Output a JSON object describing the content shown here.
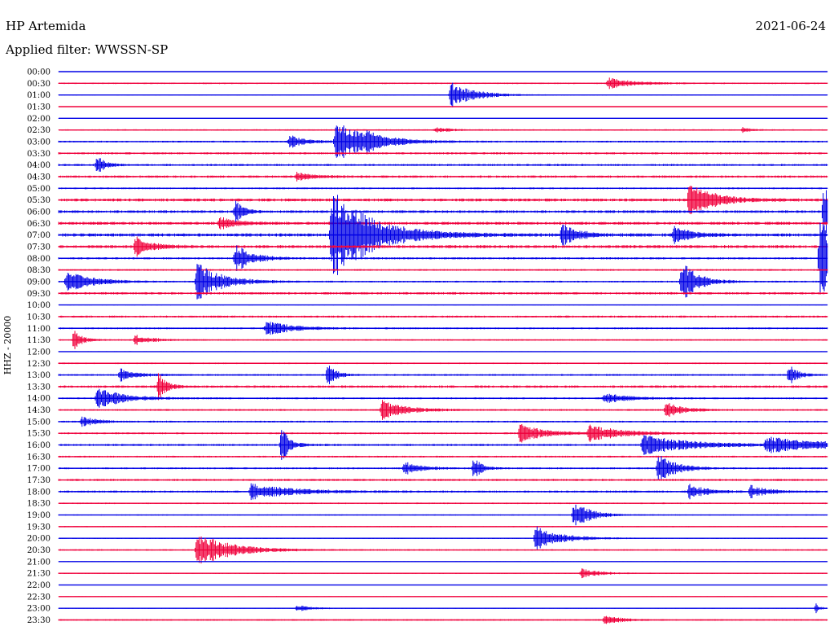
{
  "header": {
    "station": "HP Artemida",
    "date": "2021-06-24",
    "filter": "Applied filter: WWSSN-SP"
  },
  "chart_data": {
    "type": "line",
    "subtype": "helicorder",
    "ylabel": "HHZ - 20000",
    "row_labels": [
      "00:00",
      "00:30",
      "01:00",
      "01:30",
      "02:00",
      "02:30",
      "03:00",
      "03:30",
      "04:00",
      "04:30",
      "05:00",
      "05:30",
      "06:00",
      "06:30",
      "07:00",
      "07:30",
      "08:00",
      "08:30",
      "09:00",
      "09:30",
      "10:00",
      "10:30",
      "11:00",
      "11:30",
      "12:00",
      "12:30",
      "13:00",
      "13:30",
      "14:00",
      "14:30",
      "15:00",
      "15:30",
      "16:00",
      "16:30",
      "17:00",
      "17:30",
      "18:00",
      "18:30",
      "19:00",
      "19:30",
      "20:00",
      "20:30",
      "21:00",
      "21:30",
      "22:00",
      "22:30",
      "23:00",
      "23:30"
    ],
    "series_colors": [
      "#0000e6",
      "#f0003c"
    ],
    "color_pattern": "alternating rows: blue, red",
    "rows_per_hour": 2,
    "minutes_per_row": 30,
    "noise_level": [
      0.3,
      0.5,
      0.3,
      0.3,
      0.2,
      0.5,
      0.6,
      0.7,
      0.7,
      0.8,
      0.6,
      1.0,
      0.9,
      1.0,
      1.1,
      1.0,
      0.7,
      0.6,
      0.6,
      0.8,
      0.3,
      0.7,
      0.6,
      0.5,
      0.3,
      0.5,
      0.6,
      0.8,
      0.6,
      0.6,
      0.6,
      0.6,
      0.7,
      0.6,
      0.6,
      0.7,
      0.7,
      0.5,
      0.4,
      0.4,
      0.4,
      0.5,
      0.3,
      0.4,
      0.1,
      0.3,
      0.3,
      0.5
    ],
    "events": [
      {
        "row": 1,
        "t": 0.715,
        "amp": 7,
        "dur": 0.03
      },
      {
        "row": 2,
        "t": 0.51,
        "amp": 16,
        "dur": 0.03
      },
      {
        "row": 5,
        "t": 0.49,
        "amp": 3,
        "dur": 0.02
      },
      {
        "row": 5,
        "t": 0.89,
        "amp": 3,
        "dur": 0.01
      },
      {
        "row": 6,
        "t": 0.3,
        "amp": 8,
        "dur": 0.02
      },
      {
        "row": 6,
        "t": 0.36,
        "amp": 26,
        "dur": 0.04
      },
      {
        "row": 6,
        "t": 0.4,
        "amp": 6,
        "dur": 0.02
      },
      {
        "row": 8,
        "t": 0.05,
        "amp": 12,
        "dur": 0.01
      },
      {
        "row": 9,
        "t": 0.31,
        "amp": 5,
        "dur": 0.02
      },
      {
        "row": 11,
        "t": 0.82,
        "amp": 22,
        "dur": 0.03
      },
      {
        "row": 12,
        "t": 0.23,
        "amp": 14,
        "dur": 0.01
      },
      {
        "row": 12,
        "t": 0.995,
        "amp": 40,
        "dur": 0.02
      },
      {
        "row": 13,
        "t": 0.21,
        "amp": 8,
        "dur": 0.02
      },
      {
        "row": 14,
        "t": 0.355,
        "amp": 60,
        "dur": 0.05
      },
      {
        "row": 14,
        "t": 0.655,
        "amp": 14,
        "dur": 0.02
      },
      {
        "row": 14,
        "t": 0.8,
        "amp": 12,
        "dur": 0.02
      },
      {
        "row": 15,
        "t": 0.1,
        "amp": 12,
        "dur": 0.02
      },
      {
        "row": 16,
        "t": 0.23,
        "amp": 18,
        "dur": 0.02
      },
      {
        "row": 16,
        "t": 0.99,
        "amp": 50,
        "dur": 0.03
      },
      {
        "row": 18,
        "t": 0.01,
        "amp": 14,
        "dur": 0.03
      },
      {
        "row": 18,
        "t": 0.18,
        "amp": 24,
        "dur": 0.03
      },
      {
        "row": 18,
        "t": 0.81,
        "amp": 26,
        "dur": 0.02
      },
      {
        "row": 22,
        "t": 0.27,
        "amp": 10,
        "dur": 0.03
      },
      {
        "row": 23,
        "t": 0.02,
        "amp": 14,
        "dur": 0.01
      },
      {
        "row": 23,
        "t": 0.1,
        "amp": 6,
        "dur": 0.02
      },
      {
        "row": 26,
        "t": 0.08,
        "amp": 8,
        "dur": 0.02
      },
      {
        "row": 26,
        "t": 0.35,
        "amp": 16,
        "dur": 0.01
      },
      {
        "row": 26,
        "t": 0.95,
        "amp": 16,
        "dur": 0.01
      },
      {
        "row": 27,
        "t": 0.13,
        "amp": 18,
        "dur": 0.01
      },
      {
        "row": 28,
        "t": 0.05,
        "amp": 14,
        "dur": 0.03
      },
      {
        "row": 28,
        "t": 0.71,
        "amp": 6,
        "dur": 0.03
      },
      {
        "row": 29,
        "t": 0.42,
        "amp": 12,
        "dur": 0.03
      },
      {
        "row": 29,
        "t": 0.79,
        "amp": 10,
        "dur": 0.02
      },
      {
        "row": 30,
        "t": 0.03,
        "amp": 6,
        "dur": 0.02
      },
      {
        "row": 31,
        "t": 0.6,
        "amp": 12,
        "dur": 0.03
      },
      {
        "row": 31,
        "t": 0.69,
        "amp": 10,
        "dur": 0.04
      },
      {
        "row": 32,
        "t": 0.29,
        "amp": 24,
        "dur": 0.01
      },
      {
        "row": 32,
        "t": 0.76,
        "amp": 12,
        "dur": 0.06
      },
      {
        "row": 32,
        "t": 0.92,
        "amp": 10,
        "dur": 0.07
      },
      {
        "row": 34,
        "t": 0.45,
        "amp": 8,
        "dur": 0.02
      },
      {
        "row": 34,
        "t": 0.54,
        "amp": 14,
        "dur": 0.01
      },
      {
        "row": 34,
        "t": 0.78,
        "amp": 20,
        "dur": 0.02
      },
      {
        "row": 36,
        "t": 0.25,
        "amp": 10,
        "dur": 0.05
      },
      {
        "row": 36,
        "t": 0.82,
        "amp": 10,
        "dur": 0.02
      },
      {
        "row": 36,
        "t": 0.9,
        "amp": 8,
        "dur": 0.02
      },
      {
        "row": 38,
        "t": 0.67,
        "amp": 18,
        "dur": 0.02
      },
      {
        "row": 40,
        "t": 0.62,
        "amp": 16,
        "dur": 0.03
      },
      {
        "row": 41,
        "t": 0.18,
        "amp": 22,
        "dur": 0.04
      },
      {
        "row": 43,
        "t": 0.68,
        "amp": 6,
        "dur": 0.02
      },
      {
        "row": 46,
        "t": 0.31,
        "amp": 4,
        "dur": 0.02
      },
      {
        "row": 46,
        "t": 0.985,
        "amp": 6,
        "dur": 0.005
      },
      {
        "row": 47,
        "t": 0.71,
        "amp": 6,
        "dur": 0.02
      }
    ]
  }
}
